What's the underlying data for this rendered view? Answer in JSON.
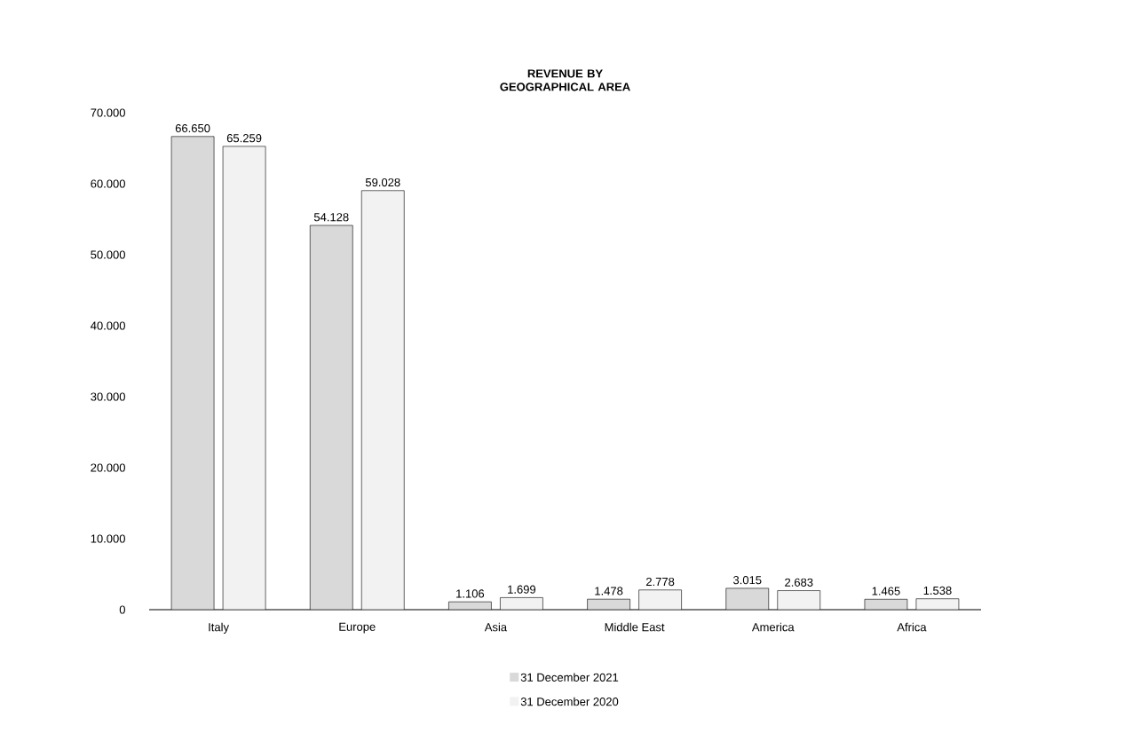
{
  "chart_data": {
    "type": "bar",
    "title": "REVENUE BY GEOGRAPHICAL AREA",
    "categories": [
      "Italy",
      "Europe",
      "Asia",
      "Middle East",
      "America",
      "Africa"
    ],
    "series": [
      {
        "name": "31 December 2021",
        "color": "#d9d9d9",
        "values": [
          66650,
          54128,
          1106,
          1478,
          3015,
          1465
        ],
        "value_labels": [
          "66.650",
          "54.128",
          "1.106",
          "1.478",
          "3.015",
          "1.465"
        ]
      },
      {
        "name": "31 December 2020",
        "color": "#f2f2f2",
        "values": [
          65259,
          59028,
          1699,
          2778,
          2683,
          1538
        ],
        "value_labels": [
          "65.259",
          "59.028",
          "1.699",
          "2.778",
          "2.683",
          "1.538"
        ]
      }
    ],
    "ylim": [
      0,
      70000
    ],
    "yticks": [
      {
        "value": 0,
        "label": "0"
      },
      {
        "value": 10000,
        "label": "10.000"
      },
      {
        "value": 20000,
        "label": "20.000"
      },
      {
        "value": 30000,
        "label": "30.000"
      },
      {
        "value": 40000,
        "label": "40.000"
      },
      {
        "value": 50000,
        "label": "50.000"
      },
      {
        "value": 60000,
        "label": "60.000"
      },
      {
        "value": 70000,
        "label": "70.000"
      }
    ],
    "grid": false,
    "legend": "bottom"
  }
}
